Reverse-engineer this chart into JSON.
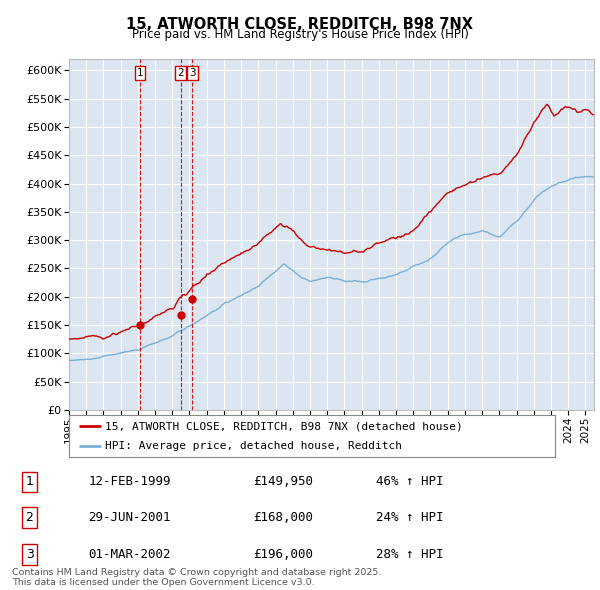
{
  "title": "15, ATWORTH CLOSE, REDDITCH, B98 7NX",
  "subtitle": "Price paid vs. HM Land Registry's House Price Index (HPI)",
  "legend_line1": "15, ATWORTH CLOSE, REDDITCH, B98 7NX (detached house)",
  "legend_line2": "HPI: Average price, detached house, Redditch",
  "footer": "Contains HM Land Registry data © Crown copyright and database right 2025.\nThis data is licensed under the Open Government Licence v3.0.",
  "transactions": [
    {
      "num": 1,
      "date": "12-FEB-1999",
      "price": 149950,
      "pct": "46%",
      "dir": "↑",
      "x": 1999.12
    },
    {
      "num": 2,
      "date": "29-JUN-2001",
      "price": 168000,
      "pct": "24%",
      "dir": "↑",
      "x": 2001.49
    },
    {
      "num": 3,
      "date": "01-MAR-2002",
      "price": 196000,
      "pct": "28%",
      "dir": "↑",
      "x": 2002.17
    }
  ],
  "red_color": "#cc0000",
  "blue_color": "#7bafd4",
  "bg_color": "#dce6f1",
  "grid_color": "#ffffff",
  "ylim": [
    0,
    620000
  ],
  "yticks": [
    0,
    50000,
    100000,
    150000,
    200000,
    250000,
    300000,
    350000,
    400000,
    450000,
    500000,
    550000,
    600000
  ],
  "xmin": 1995.0,
  "xmax": 2025.5
}
